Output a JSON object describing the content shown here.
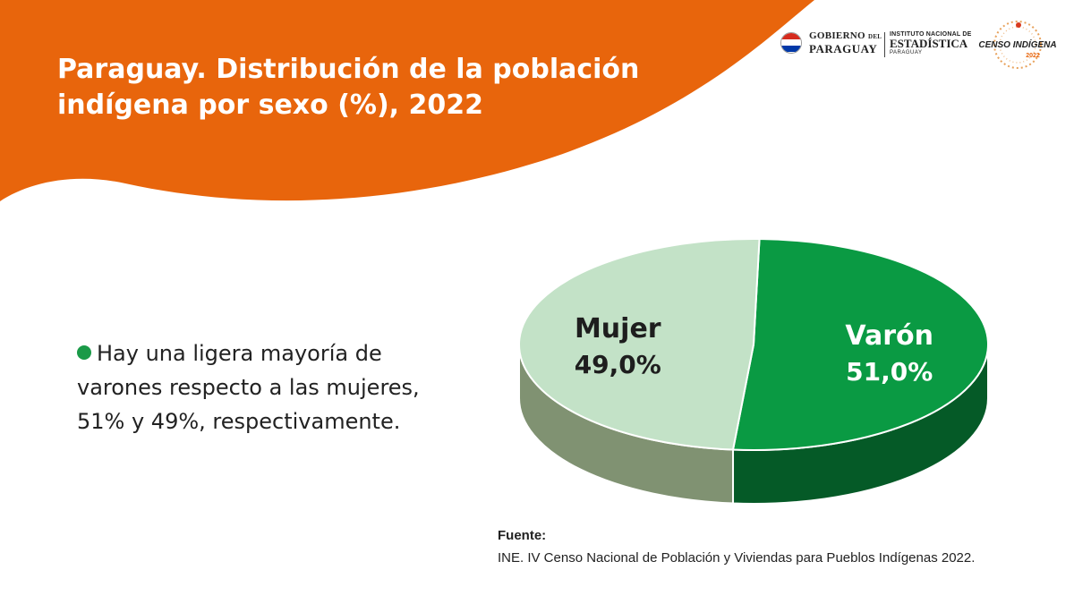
{
  "header": {
    "title_line1": "Paraguay. Distribución de la población",
    "title_line2": "indígena por sexo (%), 2022",
    "colors": {
      "wave": "#e8650c"
    }
  },
  "logos": {
    "gobierno_line1": "GOBIERNO",
    "gobierno_del": "DEL",
    "gobierno_line2": "PARAGUAY",
    "ine_line1": "INSTITUTO NACIONAL DE",
    "ine_line2": "ESTADÍSTICA",
    "ine_line3": "PARAGUAY",
    "censo_line1": "CENSO INDÍGENA",
    "censo_year": "2022"
  },
  "bullet": {
    "text": "Hay una ligera mayoría de varones respecto a las mujeres, 51% y 49%, respectivamente."
  },
  "chart_data": {
    "type": "pie",
    "title": "Paraguay. Distribución de la población indígena por sexo (%), 2022",
    "series": [
      {
        "name": "Varón",
        "value": 51.0,
        "label": "51,0%",
        "color": "#0a9a43",
        "side_color": "#055a27"
      },
      {
        "name": "Mujer",
        "value": 49.0,
        "label": "49,0%",
        "color": "#c3e2c7",
        "side_color": "#809272"
      }
    ],
    "style": "3d"
  },
  "source": {
    "label": "Fuente:",
    "text": "INE. IV Censo Nacional de Población y Viviendas para Pueblos Indígenas 2022."
  }
}
